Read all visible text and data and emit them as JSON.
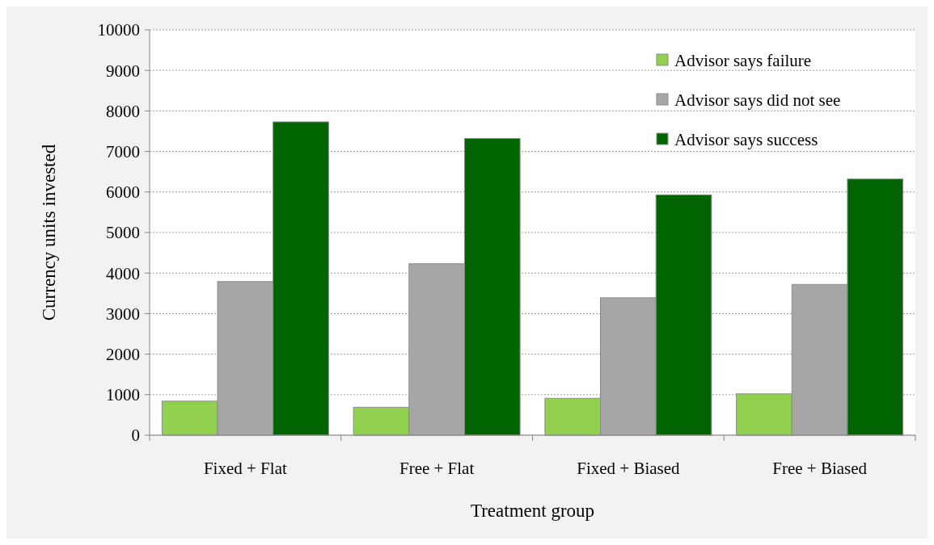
{
  "chart_data": {
    "type": "bar",
    "xlabel": "Treatment group",
    "ylabel": "Currency units invested",
    "categories": [
      "Fixed + Flat",
      "Free + Flat",
      "Fixed + Biased",
      "Free + Biased"
    ],
    "series": [
      {
        "name": "Advisor says failure",
        "color": "#92d050",
        "values": [
          840,
          690,
          910,
          1020
        ]
      },
      {
        "name": "Advisor says did not see",
        "color": "#a6a6a6",
        "values": [
          3790,
          4230,
          3390,
          3720
        ]
      },
      {
        "name": "Advisor says success",
        "color": "#006400",
        "values": [
          7730,
          7320,
          5930,
          6320
        ]
      }
    ],
    "ylim": [
      0,
      10000
    ],
    "yticks": [
      0,
      1000,
      2000,
      3000,
      4000,
      5000,
      6000,
      7000,
      8000,
      9000,
      10000
    ],
    "grid": "y",
    "legend": "top right"
  }
}
